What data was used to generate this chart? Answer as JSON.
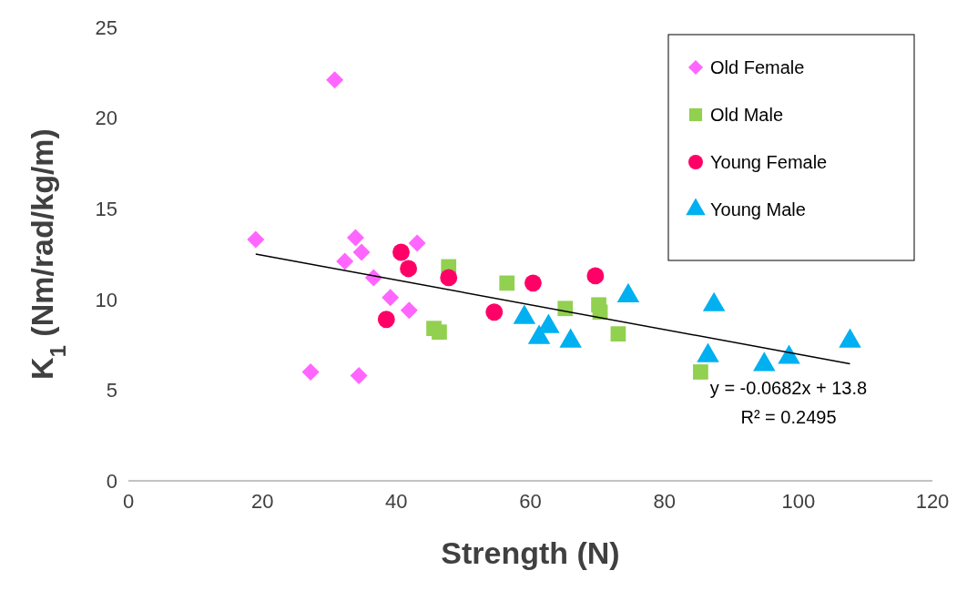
{
  "chart_data": {
    "type": "scatter",
    "xlabel": "Strength (N)",
    "ylabel": "K$_{1}$ (Nm/rad/kg/m)",
    "xlim": [
      0,
      120
    ],
    "xticks": [
      0,
      20,
      40,
      60,
      80,
      100,
      120
    ],
    "ylim": [
      0,
      25
    ],
    "yticks": [
      0,
      5,
      10,
      15,
      20,
      25
    ],
    "grid": false,
    "legend": "top right",
    "annotations": [
      "y = -0.0682x + 13.8",
      "R² = 0.2495"
    ],
    "series": [
      {
        "name": "Old Female",
        "color": "#ff66ff",
        "marker": "diamond",
        "x": [
          19,
          30.8,
          27.2,
          32.3,
          33.9,
          34.8,
          36.6,
          39.1,
          41.9,
          34.4,
          43.1
        ],
        "values": [
          13.3,
          22.1,
          6.0,
          12.1,
          13.4,
          12.6,
          11.2,
          10.1,
          9.4,
          5.8,
          13.1
        ]
      },
      {
        "name": "Old Male",
        "color": "#92d050",
        "marker": "square",
        "x": [
          47.8,
          45.6,
          46.4,
          56.5,
          65.2,
          70.2,
          70.4,
          73.1,
          85.4
        ],
        "values": [
          11.8,
          8.4,
          8.2,
          10.9,
          9.5,
          9.7,
          9.3,
          8.1,
          6.0
        ]
      },
      {
        "name": "Young Female",
        "color": "#ff0066",
        "marker": "circle",
        "x": [
          40.7,
          41.8,
          38.5,
          47.8,
          54.6,
          60.4,
          69.7
        ],
        "values": [
          12.6,
          11.7,
          8.9,
          11.2,
          9.3,
          10.9,
          11.3
        ]
      },
      {
        "name": "Young Male",
        "color": "#00b0f0",
        "marker": "triangle",
        "x": [
          59.1,
          61.3,
          62.7,
          66,
          74.6,
          86.5,
          87.4,
          94.9,
          98.6,
          107.7
        ],
        "values": [
          9.0,
          7.9,
          8.5,
          7.7,
          10.2,
          6.9,
          9.7,
          6.4,
          6.8,
          7.7
        ]
      },
      {
        "type": "line",
        "color": "#000000",
        "x": [
          19,
          107.7
        ],
        "values": [
          12.5,
          6.45
        ]
      }
    ]
  }
}
